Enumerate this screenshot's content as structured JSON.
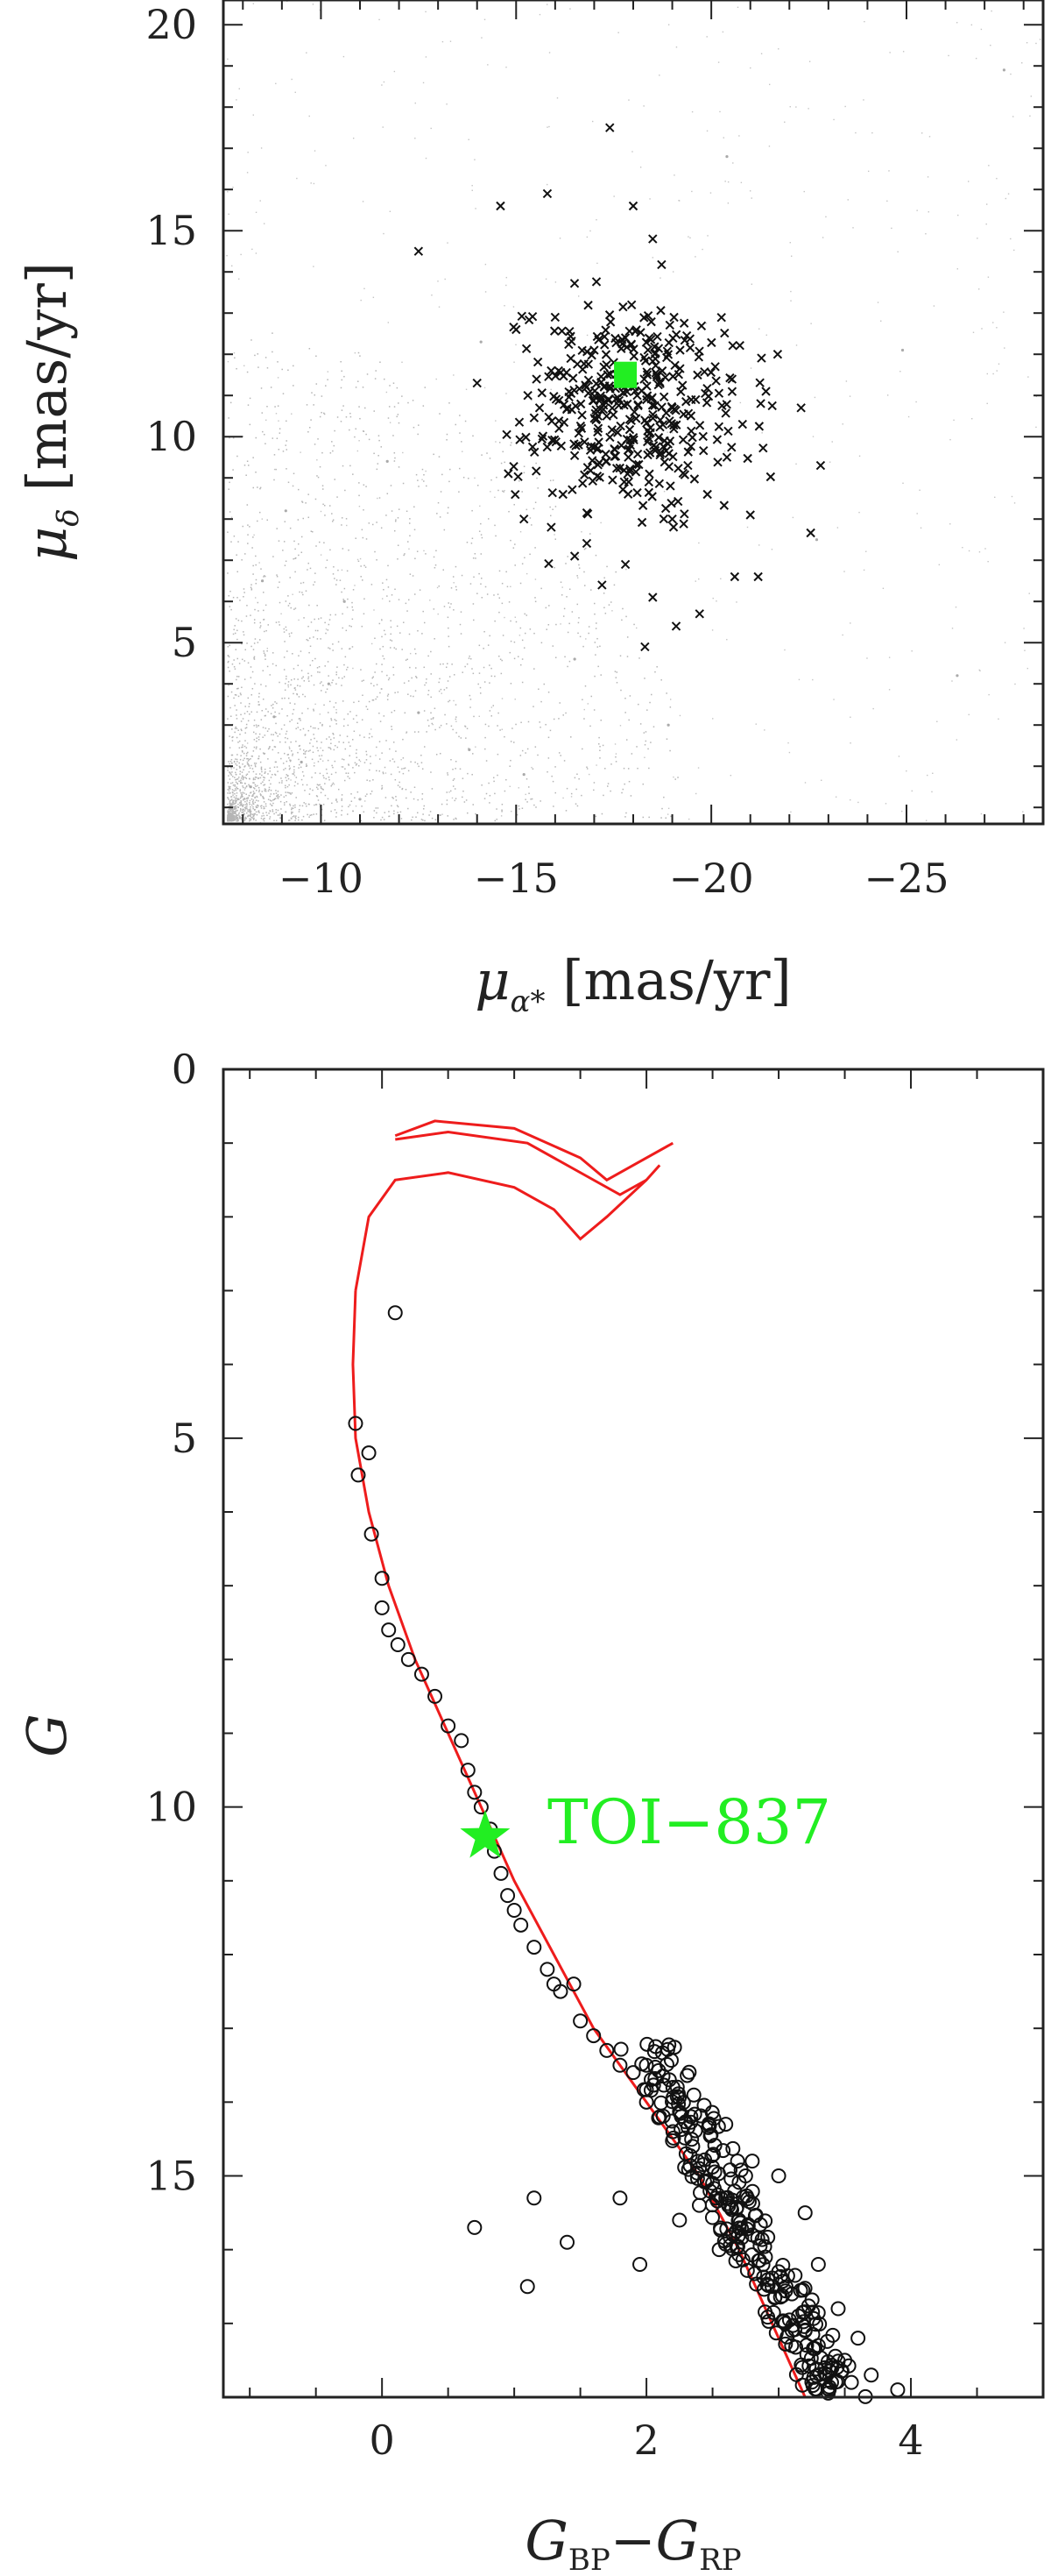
{
  "chart_data": [
    {
      "type": "scatter",
      "xlabel": "μα* [mas/yr]",
      "ylabel": "μδ [mas/yr]",
      "xlim": [
        -7.5,
        -28.5
      ],
      "ylim": [
        0.6,
        20.6
      ],
      "xticks": [
        "−10",
        "−15",
        "−20",
        "−25"
      ],
      "xtick_values": [
        -10,
        -15,
        -20,
        -25
      ],
      "yticks": [
        "5",
        "10",
        "15",
        "20"
      ],
      "ytick_values": [
        5,
        10,
        15,
        20
      ],
      "series": [
        {
          "marker": "dot",
          "color": "#aaaaaa",
          "description_values": "field stars, densest near (-8, 2)",
          "points": [
            [
              -8.2,
              1.5
            ],
            [
              -8.8,
              3.2
            ],
            [
              -9.5,
              2.1
            ],
            [
              -10.2,
              4.0
            ],
            [
              -11.0,
              1.2
            ],
            [
              -8.5,
              6.5
            ],
            [
              -12.5,
              3.3
            ],
            [
              -9.1,
              8.2
            ],
            [
              -13.8,
              2.4
            ],
            [
              -10.6,
              6.0
            ],
            [
              -15.2,
              1.8
            ],
            [
              -11.7,
              9.4
            ],
            [
              -16.5,
              4.6
            ],
            [
              -14.1,
              12.3
            ],
            [
              -18.9,
              3.0
            ],
            [
              -20.4,
              16.8
            ],
            [
              -22.7,
              7.5
            ],
            [
              -24.9,
              12.1
            ],
            [
              -26.3,
              4.2
            ],
            [
              -27.5,
              18.9
            ]
          ]
        },
        {
          "marker": "x",
          "color": "#111111",
          "description_values": "cluster members",
          "points": [
            [
              -12.5,
              14.5
            ],
            [
              -14.6,
              15.6
            ],
            [
              -15.8,
              15.9
            ],
            [
              -16.0,
              12.9
            ],
            [
              -17.4,
              17.5
            ],
            [
              -18.0,
              15.6
            ],
            [
              -18.5,
              14.8
            ],
            [
              -14.0,
              11.3
            ],
            [
              -15.0,
              12.6
            ],
            [
              -15.3,
              11.0
            ],
            [
              -15.6,
              10.7
            ],
            [
              -15.9,
              11.6
            ],
            [
              -16.1,
              10.2
            ],
            [
              -16.4,
              11.9
            ],
            [
              -16.6,
              9.8
            ],
            [
              -16.8,
              11.2
            ],
            [
              -17.0,
              12.1
            ],
            [
              -17.1,
              10.5
            ],
            [
              -17.3,
              9.4
            ],
            [
              -17.5,
              11.8
            ],
            [
              -17.6,
              10.1
            ],
            [
              -17.8,
              12.4
            ],
            [
              -17.9,
              9.7
            ],
            [
              -18.1,
              11.0
            ],
            [
              -18.3,
              10.4
            ],
            [
              -18.4,
              8.9
            ],
            [
              -18.6,
              11.5
            ],
            [
              -18.8,
              9.9
            ],
            [
              -19.0,
              10.7
            ],
            [
              -19.2,
              12.1
            ],
            [
              -19.4,
              9.3
            ],
            [
              -19.6,
              10.9
            ],
            [
              -19.9,
              8.6
            ],
            [
              -20.1,
              11.7
            ],
            [
              -20.4,
              9.5
            ],
            [
              -20.8,
              10.3
            ],
            [
              -21.0,
              8.1
            ],
            [
              -21.4,
              11.1
            ],
            [
              -21.7,
              12.0
            ],
            [
              -22.3,
              10.7
            ],
            [
              -22.8,
              9.3
            ],
            [
              -14.8,
              9.1
            ],
            [
              -15.2,
              8.0
            ],
            [
              -15.9,
              7.8
            ],
            [
              -16.5,
              7.1
            ],
            [
              -17.2,
              6.4
            ],
            [
              -17.8,
              6.9
            ],
            [
              -18.5,
              6.1
            ],
            [
              -19.1,
              5.4
            ],
            [
              -19.7,
              5.7
            ],
            [
              -20.6,
              6.6
            ],
            [
              -21.2,
              6.6
            ],
            [
              -18.3,
              4.9
            ],
            [
              -16.2,
              8.6
            ],
            [
              -19.0,
              8.0
            ]
          ]
        },
        {
          "marker": "square",
          "color": "#22ee22",
          "description_values": "TOI-837",
          "points": [
            [
              -17.8,
              11.5
            ]
          ]
        }
      ]
    },
    {
      "type": "scatter",
      "xlabel": "GBP−GRP",
      "ylabel": "G",
      "xlim": [
        -1.2,
        5.0
      ],
      "ylim": [
        18.0,
        0.0
      ],
      "xticks": [
        "0",
        "2",
        "4"
      ],
      "xtick_values": [
        0,
        2,
        4
      ],
      "yticks": [
        "0",
        "5",
        "10",
        "15"
      ],
      "ytick_values": [
        0,
        5,
        10,
        15
      ],
      "annotation": "TOI−837",
      "series": [
        {
          "marker": "circle",
          "color": "#111111",
          "description_values": "cluster members",
          "points": [
            [
              0.1,
              3.3
            ],
            [
              -0.2,
              4.8
            ],
            [
              -0.18,
              5.5
            ],
            [
              -0.1,
              5.2
            ],
            [
              -0.08,
              6.3
            ],
            [
              0.0,
              6.9
            ],
            [
              0.0,
              7.3
            ],
            [
              0.05,
              7.6
            ],
            [
              0.12,
              7.8
            ],
            [
              0.2,
              8.0
            ],
            [
              0.3,
              8.2
            ],
            [
              0.4,
              8.5
            ],
            [
              0.5,
              8.9
            ],
            [
              0.6,
              9.1
            ],
            [
              0.65,
              9.5
            ],
            [
              0.7,
              9.8
            ],
            [
              0.75,
              10.0
            ],
            [
              0.82,
              10.3
            ],
            [
              0.85,
              10.6
            ],
            [
              0.9,
              10.9
            ],
            [
              0.95,
              11.2
            ],
            [
              1.0,
              11.4
            ],
            [
              1.05,
              11.6
            ],
            [
              1.15,
              11.9
            ],
            [
              1.25,
              12.2
            ],
            [
              1.35,
              12.5
            ],
            [
              1.45,
              12.4
            ],
            [
              1.5,
              12.9
            ],
            [
              1.6,
              13.1
            ],
            [
              1.7,
              13.3
            ],
            [
              1.8,
              13.5
            ],
            [
              1.9,
              13.6
            ],
            [
              2.0,
              14.0
            ],
            [
              2.1,
              14.2
            ],
            [
              2.2,
              14.4
            ],
            [
              2.3,
              14.7
            ],
            [
              2.4,
              14.9
            ],
            [
              2.5,
              15.1
            ],
            [
              2.6,
              15.3
            ],
            [
              2.7,
              15.6
            ],
            [
              2.8,
              15.8
            ],
            [
              2.9,
              16.1
            ],
            [
              3.0,
              16.3
            ],
            [
              3.1,
              16.6
            ],
            [
              3.15,
              16.9
            ],
            [
              3.2,
              17.1
            ],
            [
              3.3,
              17.3
            ],
            [
              3.35,
              17.6
            ],
            [
              3.4,
              17.8
            ],
            [
              3.5,
              17.5
            ],
            [
              3.6,
              17.2
            ],
            [
              3.7,
              17.7
            ],
            [
              3.9,
              17.9
            ],
            [
              2.2,
              13.8
            ],
            [
              2.6,
              14.3
            ],
            [
              2.8,
              14.8
            ],
            [
              3.0,
              15.0
            ],
            [
              3.2,
              15.5
            ],
            [
              3.3,
              16.2
            ],
            [
              1.8,
              15.3
            ],
            [
              2.4,
              15.4
            ],
            [
              0.7,
              15.7
            ],
            [
              1.15,
              15.3
            ],
            [
              1.4,
              15.9
            ],
            [
              1.1,
              16.5
            ],
            [
              1.95,
              16.2
            ],
            [
              1.3,
              12.4
            ],
            [
              2.25,
              15.6
            ],
            [
              2.55,
              16.0
            ],
            [
              3.05,
              17.0
            ],
            [
              3.45,
              16.8
            ],
            [
              3.55,
              17.8
            ],
            [
              2.95,
              16.5
            ],
            [
              2.75,
              15.0
            ],
            [
              2.35,
              14.6
            ]
          ]
        },
        {
          "marker": "line",
          "color": "#ee1c1c",
          "description_values": "isochrone",
          "points": [
            [
              -0.2,
              3.0
            ],
            [
              -0.22,
              4.0
            ],
            [
              -0.2,
              5.0
            ],
            [
              -0.1,
              6.0
            ],
            [
              0.05,
              7.0
            ],
            [
              0.25,
              8.0
            ],
            [
              0.5,
              9.0
            ],
            [
              0.75,
              10.0
            ],
            [
              1.0,
              11.0
            ],
            [
              1.3,
              12.0
            ],
            [
              1.6,
              13.0
            ],
            [
              2.0,
              14.0
            ],
            [
              2.4,
              15.0
            ],
            [
              2.7,
              16.0
            ],
            [
              2.95,
              17.0
            ],
            [
              3.2,
              18.0
            ]
          ]
        },
        {
          "marker": "star",
          "color": "#22ee22",
          "description_values": "TOI-837",
          "points": [
            [
              0.78,
              10.4
            ]
          ]
        }
      ]
    }
  ],
  "colors": {
    "field": "#aaaaaa",
    "member": "#111111",
    "highlight": "#22ee22",
    "isochrone": "#ee1c1c"
  }
}
